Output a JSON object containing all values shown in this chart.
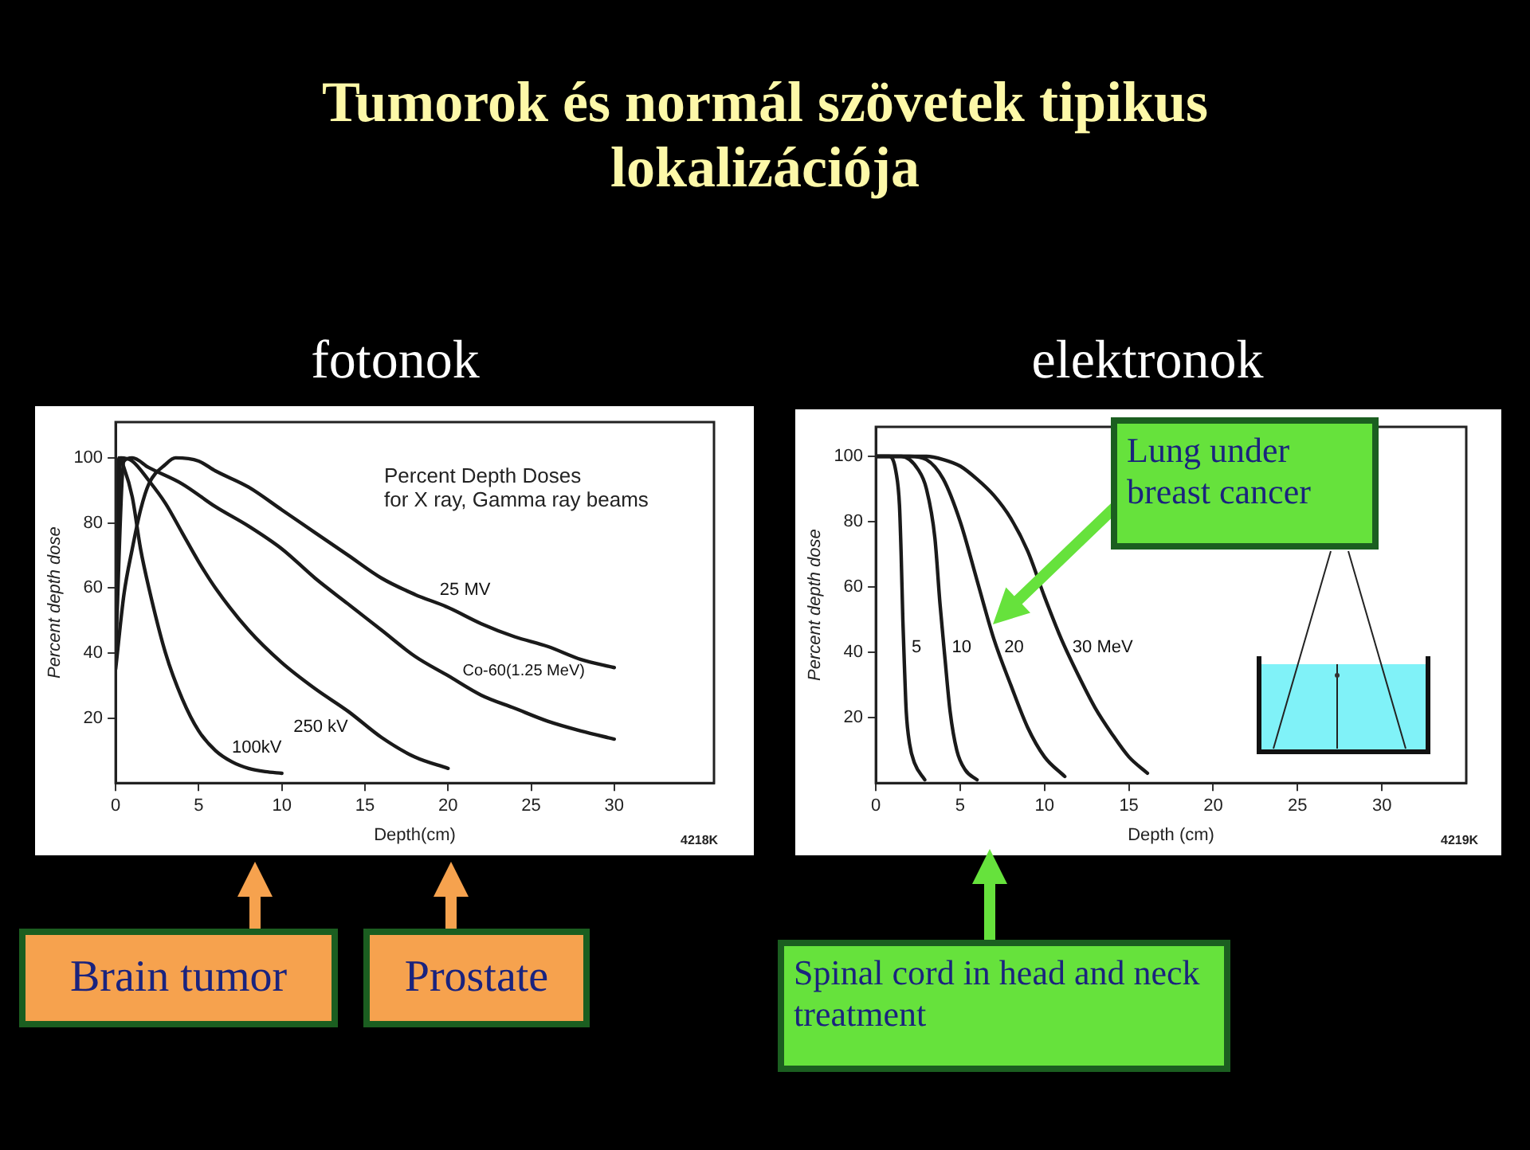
{
  "chart_data": [
    {
      "type": "line",
      "title": "fotonok",
      "xlabel": "Depth(cm)",
      "ylabel": "Percent depth dose",
      "xlim": [
        0,
        36
      ],
      "ylim": [
        0,
        111
      ],
      "xticks": [
        0,
        5,
        10,
        15,
        20,
        25,
        30
      ],
      "yticks": [
        20,
        40,
        60,
        80,
        100
      ],
      "grid": false,
      "legend": false,
      "series": [
        {
          "name": "100kV",
          "color": "#1a1a1a",
          "x": [
            0,
            0.2,
            0.5,
            1,
            1.5,
            2,
            3,
            4,
            5,
            6,
            7,
            8,
            9,
            10
          ],
          "values": [
            38,
            100,
            97,
            88,
            72,
            60,
            40,
            26,
            16,
            10,
            6.5,
            4.5,
            3.5,
            3
          ]
        },
        {
          "name": "250 kV",
          "color": "#1a1a1a",
          "x": [
            0,
            0.3,
            1,
            2,
            3,
            4,
            5,
            6,
            8,
            10,
            12,
            14,
            16,
            18,
            20
          ],
          "values": [
            50,
            100,
            99,
            93,
            86,
            77,
            68,
            60,
            47,
            37,
            29,
            22,
            14,
            8,
            4.5
          ]
        },
        {
          "name": "Co-60(1.25 MeV)",
          "color": "#1a1a1a",
          "x": [
            0,
            0.5,
            1,
            2,
            4,
            6,
            8,
            10,
            12,
            14,
            16,
            18,
            20,
            22,
            24,
            26,
            28,
            30
          ],
          "values": [
            40,
            99,
            100,
            97,
            92,
            85,
            79,
            72,
            63,
            55,
            47,
            39,
            33,
            27,
            23,
            19,
            16,
            13.5
          ]
        },
        {
          "name": "25 MV",
          "color": "#1a1a1a",
          "x": [
            0,
            0.5,
            1,
            1.5,
            2,
            3,
            3.6,
            5,
            6,
            8,
            10,
            12,
            14,
            16,
            18,
            20,
            22,
            24,
            26,
            28,
            30
          ],
          "values": [
            35,
            58,
            72,
            84,
            92,
            98,
            100,
            99,
            96,
            91,
            84,
            77,
            70,
            63,
            58,
            54,
            49,
            45,
            42,
            38,
            35.5
          ]
        }
      ],
      "annotations": [
        "Tumorok és normál szövetek tipikus lokalizációja",
        "Percent Depth Doses\nfor X ray, Gamma ray beams",
        "4218K",
        "Brain tumor",
        "Prostate"
      ]
    },
    {
      "type": "line",
      "title": "elektronok",
      "xlabel": "Depth (cm)",
      "ylabel": "Percent depth dose",
      "xlim": [
        0,
        35
      ],
      "ylim": [
        0,
        109
      ],
      "xticks": [
        0,
        5,
        10,
        15,
        20,
        25,
        30
      ],
      "yticks": [
        20,
        40,
        60,
        80,
        100
      ],
      "grid": false,
      "legend": false,
      "series": [
        {
          "name": "5",
          "color": "#1a1a1a",
          "x": [
            0,
            0.8,
            1.2,
            1.4,
            1.5,
            1.6,
            1.7,
            1.8,
            2,
            2.3,
            2.9
          ],
          "values": [
            100,
            100,
            95,
            85,
            70,
            50,
            35,
            22,
            12,
            6,
            1
          ]
        },
        {
          "name": "10",
          "color": "#1a1a1a",
          "x": [
            0,
            1.5,
            2.5,
            3,
            3.5,
            3.8,
            4.1,
            4.4,
            4.8,
            5.3,
            6
          ],
          "values": [
            100,
            100,
            96,
            90,
            75,
            55,
            38,
            22,
            10,
            4,
            1
          ]
        },
        {
          "name": "20",
          "color": "#1a1a1a",
          "x": [
            0,
            2,
            3,
            4,
            5,
            6,
            7,
            8,
            9,
            10,
            11.2
          ],
          "values": [
            100,
            100,
            99,
            93,
            80,
            62,
            44,
            30,
            17,
            8,
            2
          ]
        },
        {
          "name": "30 MeV",
          "color": "#1a1a1a",
          "x": [
            0,
            3,
            4,
            5,
            6,
            7,
            8,
            9,
            10,
            11,
            12,
            13,
            14,
            15,
            16.1
          ],
          "values": [
            100,
            100,
            99,
            97,
            93,
            88,
            81,
            71,
            57,
            44,
            33,
            23,
            15,
            8,
            3
          ]
        }
      ],
      "annotations": [
        "4219K",
        "Lung under breast cancer",
        "Spinal cord in head and neck treatment"
      ]
    }
  ]
}
